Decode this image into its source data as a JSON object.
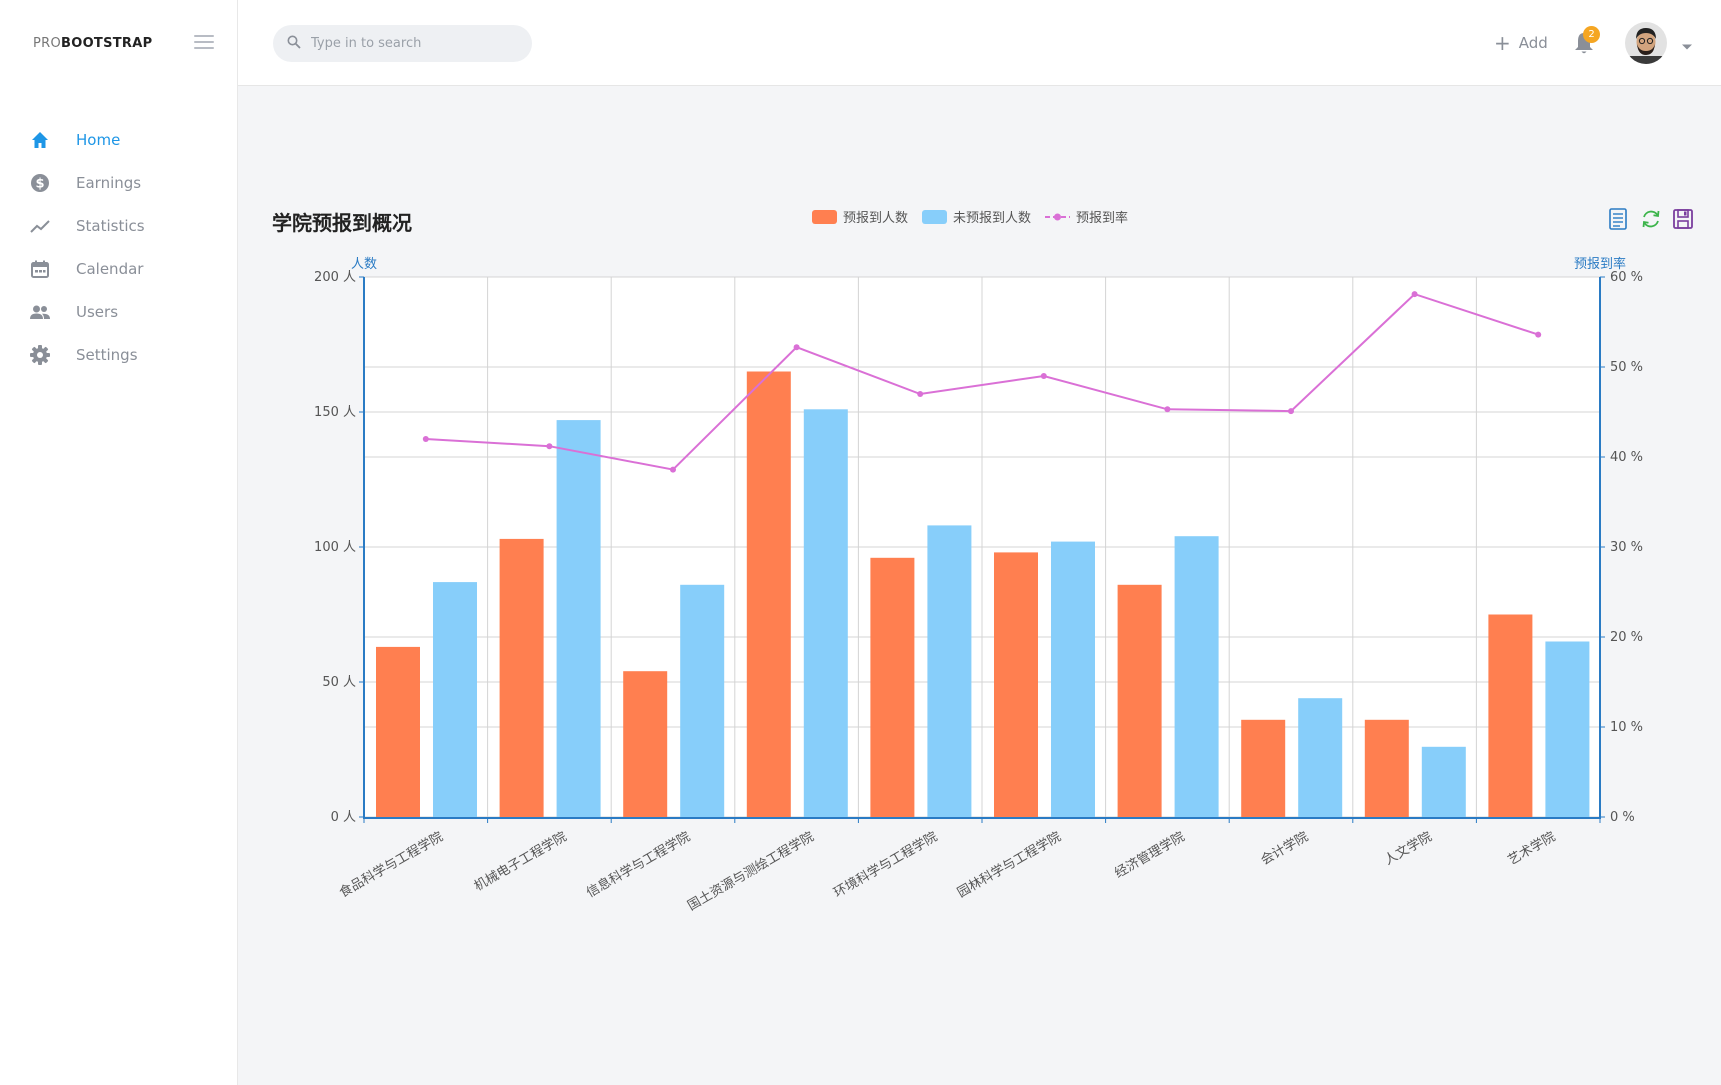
{
  "brand": {
    "pro": "PRO",
    "bootstrap": "BOOTSTRAP"
  },
  "search": {
    "placeholder": "Type in to search"
  },
  "nav": {
    "items": [
      {
        "label": "Home",
        "icon": "home-icon",
        "active": true
      },
      {
        "label": "Earnings",
        "icon": "dollar-icon"
      },
      {
        "label": "Statistics",
        "icon": "trending-icon"
      },
      {
        "label": "Calendar",
        "icon": "calendar-icon"
      },
      {
        "label": "Users",
        "icon": "users-icon"
      },
      {
        "label": "Settings",
        "icon": "gear-icon"
      }
    ]
  },
  "topbar": {
    "add_label": "Add",
    "notification_count": "2"
  },
  "colors": {
    "accent": "#1e96e6",
    "bar1": "#ff7f50",
    "bar2": "#87cefa",
    "line": "#da70d6",
    "axis": "#2a7bc4"
  },
  "chart_data": {
    "type": "bar",
    "title": "学院预报到概况",
    "ylabel": "人数",
    "y2label": "预报到率",
    "ylim": [
      0,
      200
    ],
    "y2lim": [
      0,
      60
    ],
    "yticks": [
      0,
      50,
      100,
      150,
      200
    ],
    "y2ticks": [
      0,
      10,
      20,
      30,
      40,
      50,
      60
    ],
    "y_unit": " 人",
    "y2_unit": " %",
    "legend_position": "top-center",
    "grid": true,
    "categories": [
      "食品科学与工程学院",
      "机械电子工程学院",
      "信息科学与工程学院",
      "国土资源与测绘工程学院",
      "环境科学与工程学院",
      "园林科学与工程学院",
      "经济管理学院",
      "会计学院",
      "人文学院",
      "艺术学院"
    ],
    "series": [
      {
        "name": "预报到人数",
        "type": "bar",
        "values": [
          63,
          103,
          54,
          165,
          96,
          98,
          86,
          36,
          36,
          75
        ]
      },
      {
        "name": "未预报到人数",
        "type": "bar",
        "values": [
          87,
          147,
          86,
          151,
          108,
          102,
          104,
          44,
          26,
          65
        ]
      },
      {
        "name": "预报到率",
        "type": "line",
        "axis": "right",
        "values": [
          42.0,
          41.2,
          38.6,
          52.2,
          47.0,
          49.0,
          45.3,
          45.1,
          58.1,
          53.6
        ]
      }
    ]
  }
}
